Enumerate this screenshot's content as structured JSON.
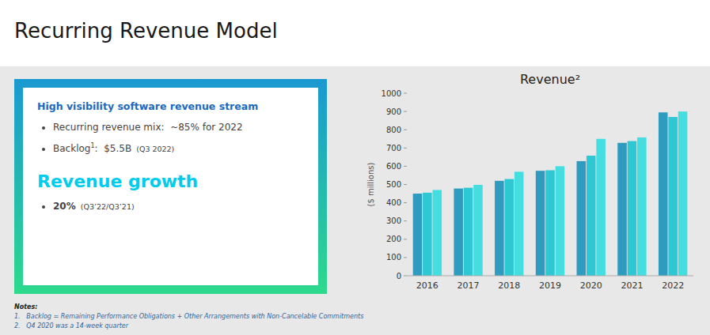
{
  "chart_data": {
    "type": "bar",
    "title": "Revenue²",
    "categories": [
      "2016",
      "2017",
      "2018",
      "2019",
      "2020",
      "2021",
      "2022"
    ],
    "series": [
      {
        "color": "#2e9bbf",
        "values": [
          450,
          478,
          520,
          575,
          628,
          728,
          895
        ]
      },
      {
        "color": "#2ec8d4",
        "values": [
          455,
          482,
          530,
          578,
          658,
          738,
          870
        ]
      },
      {
        "color": "#44dde0",
        "values": [
          470,
          498,
          570,
          600,
          750,
          758,
          900
        ]
      }
    ],
    "ylabel": "($ millions)",
    "ylim": [
      0,
      1000
    ],
    "yticks": [
      0,
      100,
      200,
      300,
      400,
      500,
      600,
      700,
      800,
      900,
      1000
    ],
    "grid": false,
    "annotations": [
      "Recurring Revenue Model",
      "High visibility software revenue stream",
      "Recurring revenue mix:  ~85% for 2022",
      "Backlog",
      "1",
      ":  $5.5B",
      "  (Q3 2022)",
      "Revenue growth",
      "20%",
      "  (Q3’22/Q3’21)",
      "Notes:",
      "1.   Backlog = Remaining Performance Obligations + Other Arrangements with Non-Cancelable Commitments",
      "2.   Q4 2020 was a 14-week quarter"
    ]
  }
}
